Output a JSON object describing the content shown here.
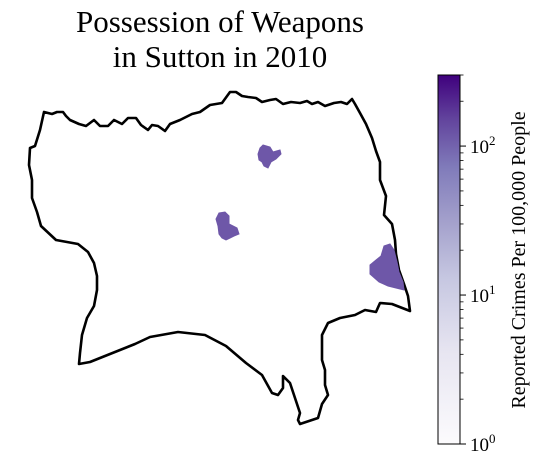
{
  "title": {
    "line1": "Possession of Weapons",
    "line2": "in Sutton in 2010"
  },
  "colorbar": {
    "label": "Reported Crimes Per 100,000 People",
    "scale": "log",
    "min": 1,
    "max": 300,
    "ticks": [
      {
        "value": 1,
        "base": "10",
        "exp": "0"
      },
      {
        "value": 10,
        "base": "10",
        "exp": "1"
      },
      {
        "value": 100,
        "base": "10",
        "exp": "2"
      }
    ],
    "color_low": "#fcfbfd",
    "color_high": "#3f007d",
    "colormap": "Purples"
  },
  "map": {
    "boundary_color": "#000000",
    "highlighted_areas": [
      {
        "location": "north",
        "value": 60
      },
      {
        "location": "center-west",
        "value": 60
      },
      {
        "location": "east",
        "value": 60
      }
    ],
    "area_color": "#6e57a8"
  }
}
